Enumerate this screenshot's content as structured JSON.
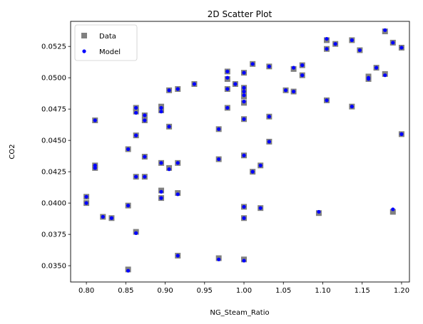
{
  "chart_data": {
    "type": "scatter",
    "title": "2D Scatter Plot",
    "xlabel": "NG_Steam_Ratio",
    "ylabel": "CO2",
    "xlim": [
      0.78,
      1.21
    ],
    "ylim": [
      0.0337,
      0.0545
    ],
    "xticks": [
      "0.80",
      "0.85",
      "0.90",
      "0.95",
      "1.00",
      "1.05",
      "1.10",
      "1.15",
      "1.20"
    ],
    "yticks": [
      "0.0350",
      "0.0375",
      "0.0400",
      "0.0425",
      "0.0450",
      "0.0475",
      "0.0500",
      "0.0525"
    ],
    "grid": false,
    "legend_position": "upper-left",
    "series": [
      {
        "name": "Data",
        "marker": "square",
        "color": "#808080",
        "points": [
          [
            0.8,
            0.0405
          ],
          [
            0.8,
            0.04
          ],
          [
            0.811,
            0.0466
          ],
          [
            0.811,
            0.043
          ],
          [
            0.811,
            0.0428
          ],
          [
            0.821,
            0.0389
          ],
          [
            0.832,
            0.0388
          ],
          [
            0.853,
            0.0443
          ],
          [
            0.853,
            0.0398
          ],
          [
            0.853,
            0.0347
          ],
          [
            0.863,
            0.0476
          ],
          [
            0.863,
            0.0473
          ],
          [
            0.863,
            0.0454
          ],
          [
            0.863,
            0.0421
          ],
          [
            0.863,
            0.0377
          ],
          [
            0.874,
            0.047
          ],
          [
            0.874,
            0.0466
          ],
          [
            0.874,
            0.0437
          ],
          [
            0.874,
            0.0421
          ],
          [
            0.895,
            0.0477
          ],
          [
            0.895,
            0.0474
          ],
          [
            0.895,
            0.0432
          ],
          [
            0.895,
            0.041
          ],
          [
            0.895,
            0.0404
          ],
          [
            0.905,
            0.049
          ],
          [
            0.905,
            0.0461
          ],
          [
            0.905,
            0.0428
          ],
          [
            0.916,
            0.0491
          ],
          [
            0.916,
            0.0432
          ],
          [
            0.916,
            0.0408
          ],
          [
            0.916,
            0.0358
          ],
          [
            0.937,
            0.0495
          ],
          [
            0.968,
            0.0459
          ],
          [
            0.968,
            0.0435
          ],
          [
            0.968,
            0.0356
          ],
          [
            0.979,
            0.0505
          ],
          [
            0.979,
            0.0499
          ],
          [
            0.979,
            0.0491
          ],
          [
            0.979,
            0.0476
          ],
          [
            0.989,
            0.0495
          ],
          [
            1.0,
            0.0504
          ],
          [
            1.0,
            0.0492
          ],
          [
            1.0,
            0.0489
          ],
          [
            1.0,
            0.0485
          ],
          [
            1.0,
            0.048
          ],
          [
            1.0,
            0.0467
          ],
          [
            1.0,
            0.0438
          ],
          [
            1.0,
            0.0397
          ],
          [
            1.0,
            0.0388
          ],
          [
            1.0,
            0.0355
          ],
          [
            1.011,
            0.0511
          ],
          [
            1.011,
            0.0425
          ],
          [
            1.021,
            0.043
          ],
          [
            1.021,
            0.0396
          ],
          [
            1.032,
            0.0509
          ],
          [
            1.032,
            0.0469
          ],
          [
            1.032,
            0.0449
          ],
          [
            1.053,
            0.049
          ],
          [
            1.063,
            0.0507
          ],
          [
            1.063,
            0.0489
          ],
          [
            1.074,
            0.051
          ],
          [
            1.074,
            0.0502
          ],
          [
            1.095,
            0.0392
          ],
          [
            1.105,
            0.053
          ],
          [
            1.105,
            0.0523
          ],
          [
            1.105,
            0.0482
          ],
          [
            1.116,
            0.0527
          ],
          [
            1.137,
            0.053
          ],
          [
            1.137,
            0.0477
          ],
          [
            1.147,
            0.0522
          ],
          [
            1.158,
            0.0501
          ],
          [
            1.158,
            0.0499
          ],
          [
            1.168,
            0.0508
          ],
          [
            1.179,
            0.0537
          ],
          [
            1.179,
            0.0503
          ],
          [
            1.189,
            0.0528
          ],
          [
            1.189,
            0.0393
          ],
          [
            1.2,
            0.0524
          ],
          [
            1.2,
            0.0455
          ]
        ]
      },
      {
        "name": "Model",
        "marker": "circle",
        "color": "#0000ff",
        "points": [
          [
            0.8,
            0.0405
          ],
          [
            0.8,
            0.04
          ],
          [
            0.811,
            0.0466
          ],
          [
            0.811,
            0.043
          ],
          [
            0.811,
            0.0428
          ],
          [
            0.821,
            0.0389
          ],
          [
            0.832,
            0.0388
          ],
          [
            0.853,
            0.0443
          ],
          [
            0.853,
            0.0398
          ],
          [
            0.853,
            0.0346
          ],
          [
            0.863,
            0.0476
          ],
          [
            0.863,
            0.0472
          ],
          [
            0.863,
            0.0454
          ],
          [
            0.863,
            0.0421
          ],
          [
            0.863,
            0.0376
          ],
          [
            0.874,
            0.047
          ],
          [
            0.874,
            0.0466
          ],
          [
            0.874,
            0.0437
          ],
          [
            0.874,
            0.0421
          ],
          [
            0.895,
            0.0476
          ],
          [
            0.895,
            0.0473
          ],
          [
            0.895,
            0.0432
          ],
          [
            0.895,
            0.0409
          ],
          [
            0.895,
            0.0404
          ],
          [
            0.905,
            0.049
          ],
          [
            0.905,
            0.0461
          ],
          [
            0.905,
            0.0427
          ],
          [
            0.916,
            0.0491
          ],
          [
            0.916,
            0.0432
          ],
          [
            0.916,
            0.0407
          ],
          [
            0.916,
            0.0358
          ],
          [
            0.937,
            0.0495
          ],
          [
            0.968,
            0.0459
          ],
          [
            0.968,
            0.0435
          ],
          [
            0.968,
            0.0355
          ],
          [
            0.979,
            0.0505
          ],
          [
            0.979,
            0.05
          ],
          [
            0.979,
            0.0491
          ],
          [
            0.979,
            0.0476
          ],
          [
            0.989,
            0.0495
          ],
          [
            1.0,
            0.0504
          ],
          [
            1.0,
            0.0492
          ],
          [
            1.0,
            0.0489
          ],
          [
            1.0,
            0.0486
          ],
          [
            1.0,
            0.0481
          ],
          [
            1.0,
            0.0467
          ],
          [
            1.0,
            0.0438
          ],
          [
            1.0,
            0.0397
          ],
          [
            1.0,
            0.0388
          ],
          [
            1.0,
            0.0354
          ],
          [
            1.011,
            0.0511
          ],
          [
            1.011,
            0.0425
          ],
          [
            1.021,
            0.043
          ],
          [
            1.021,
            0.0396
          ],
          [
            1.032,
            0.0509
          ],
          [
            1.032,
            0.0469
          ],
          [
            1.032,
            0.0449
          ],
          [
            1.053,
            0.049
          ],
          [
            1.063,
            0.0508
          ],
          [
            1.063,
            0.0489
          ],
          [
            1.074,
            0.051
          ],
          [
            1.074,
            0.0502
          ],
          [
            1.095,
            0.0393
          ],
          [
            1.105,
            0.0531
          ],
          [
            1.105,
            0.0523
          ],
          [
            1.105,
            0.0482
          ],
          [
            1.116,
            0.0527
          ],
          [
            1.137,
            0.053
          ],
          [
            1.137,
            0.0477
          ],
          [
            1.147,
            0.0522
          ],
          [
            1.158,
            0.05
          ],
          [
            1.158,
            0.0499
          ],
          [
            1.168,
            0.0508
          ],
          [
            1.179,
            0.0538
          ],
          [
            1.179,
            0.0502
          ],
          [
            1.189,
            0.0528
          ],
          [
            1.189,
            0.0395
          ],
          [
            1.2,
            0.0524
          ],
          [
            1.2,
            0.0455
          ]
        ]
      }
    ]
  }
}
